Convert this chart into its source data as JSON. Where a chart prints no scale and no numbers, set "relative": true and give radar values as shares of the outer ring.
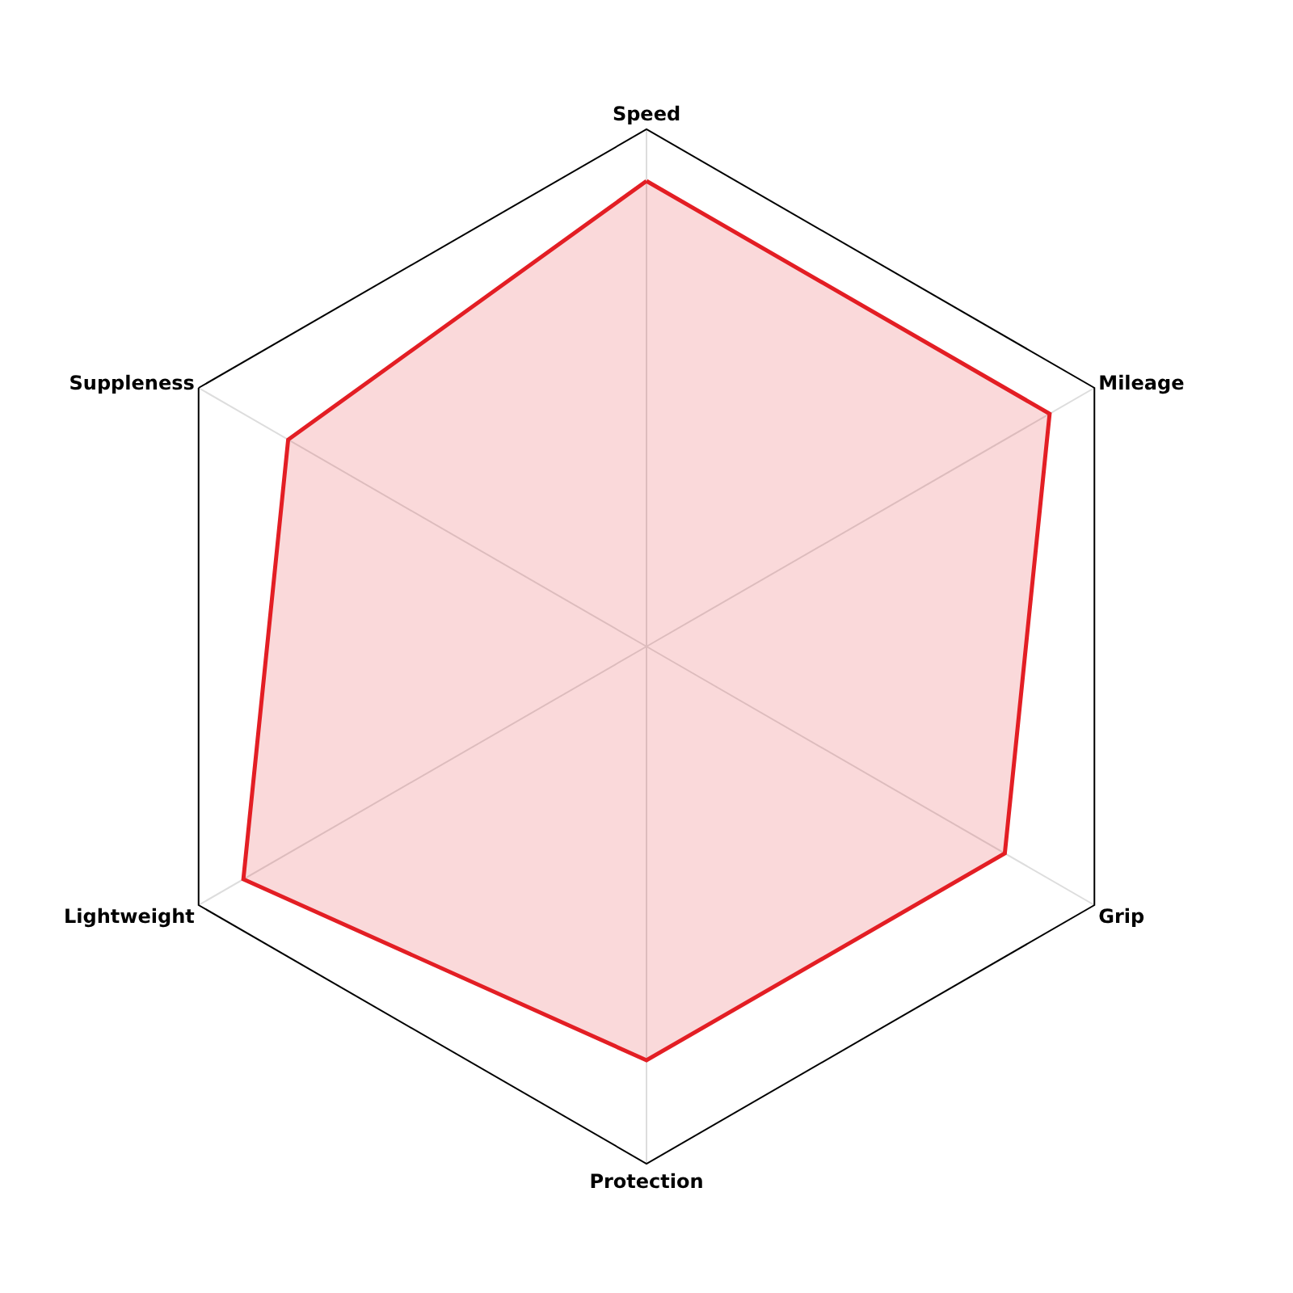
{
  "chart_data": {
    "type": "radar",
    "relative": true,
    "categories": [
      "Speed",
      "Mileage",
      "Grip",
      "Protection",
      "Lightweight",
      "Suppleness"
    ],
    "series": [
      {
        "color": "#e31e24",
        "values": [
          0.9,
          0.9,
          0.8,
          0.8,
          0.9,
          0.8
        ]
      }
    ],
    "legend": false
  }
}
